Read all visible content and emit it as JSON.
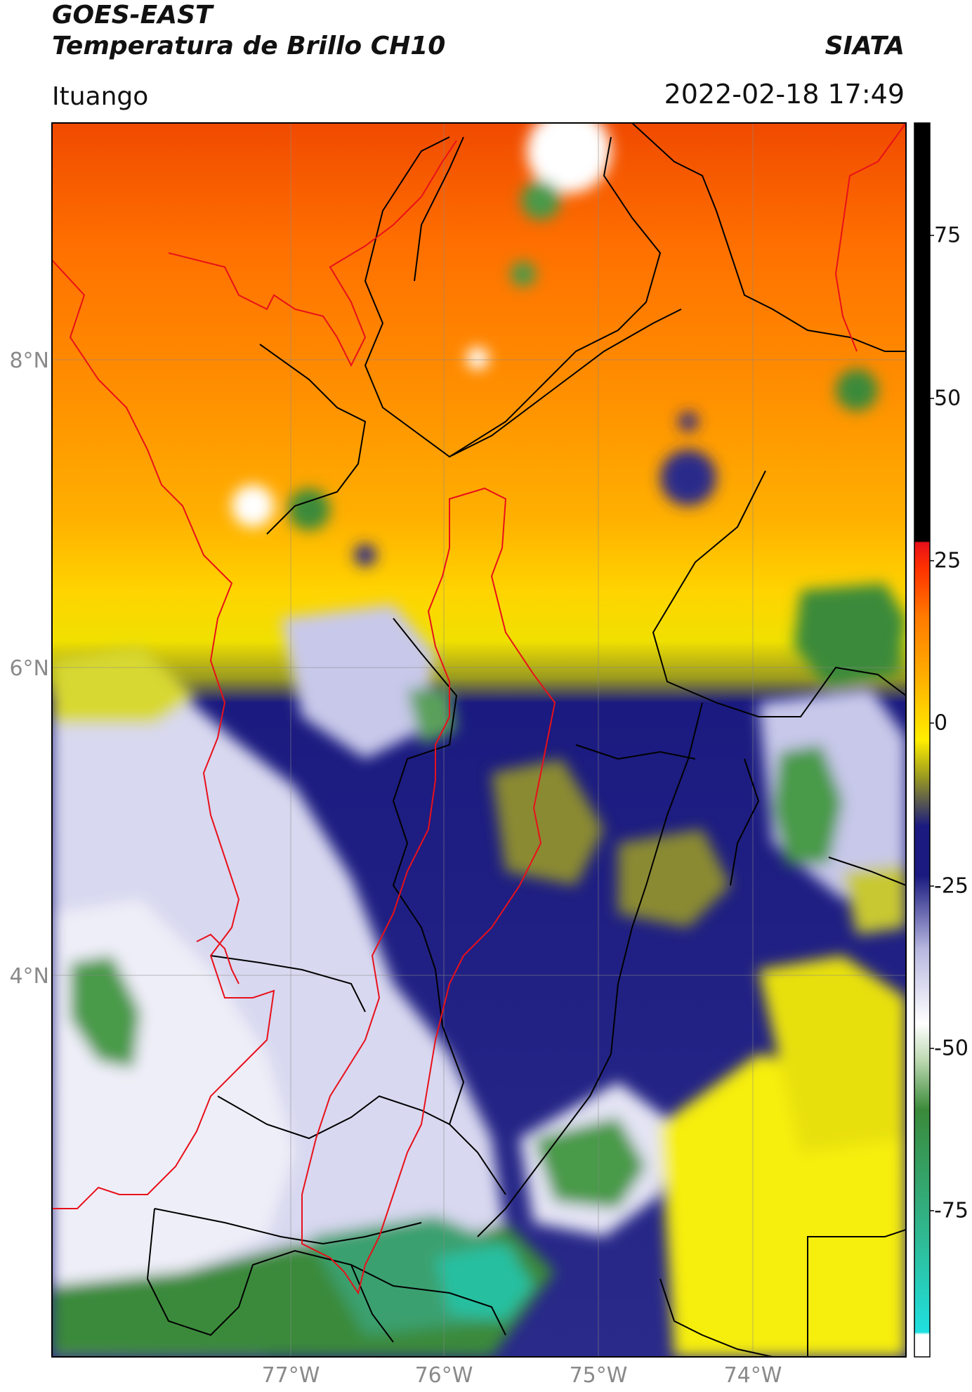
{
  "header": {
    "satellite": "GOES-EAST",
    "product": "Temperatura de Brillo CH10",
    "organization": "SIATA",
    "location": "Ituango",
    "datetime": "2022-02-18 17:49"
  },
  "map": {
    "lat_labels": [
      "8°N",
      "6°N",
      "4°N"
    ],
    "lon_labels": [
      "77°W",
      "76°W",
      "75°W",
      "74°W"
    ],
    "gridlines": true,
    "basin_outline_color": "#e8101a",
    "boundary_color": "#000000"
  },
  "colorbar": {
    "ticks": [
      "75",
      "50",
      "25",
      "0",
      "-25",
      "-50",
      "-75"
    ],
    "range": [
      -95,
      90
    ],
    "colors": {
      "black": "#000000",
      "red": "#e8101a",
      "orange": "#ff7a00",
      "yellow": "#ffee00",
      "olive": "#9a9a20",
      "navy": "#1a1a80",
      "lavender": "#b8b8e0",
      "white": "#ffffff",
      "green": "#3a8a3a",
      "teal": "#30b890",
      "cyan": "#20e0e0"
    }
  }
}
